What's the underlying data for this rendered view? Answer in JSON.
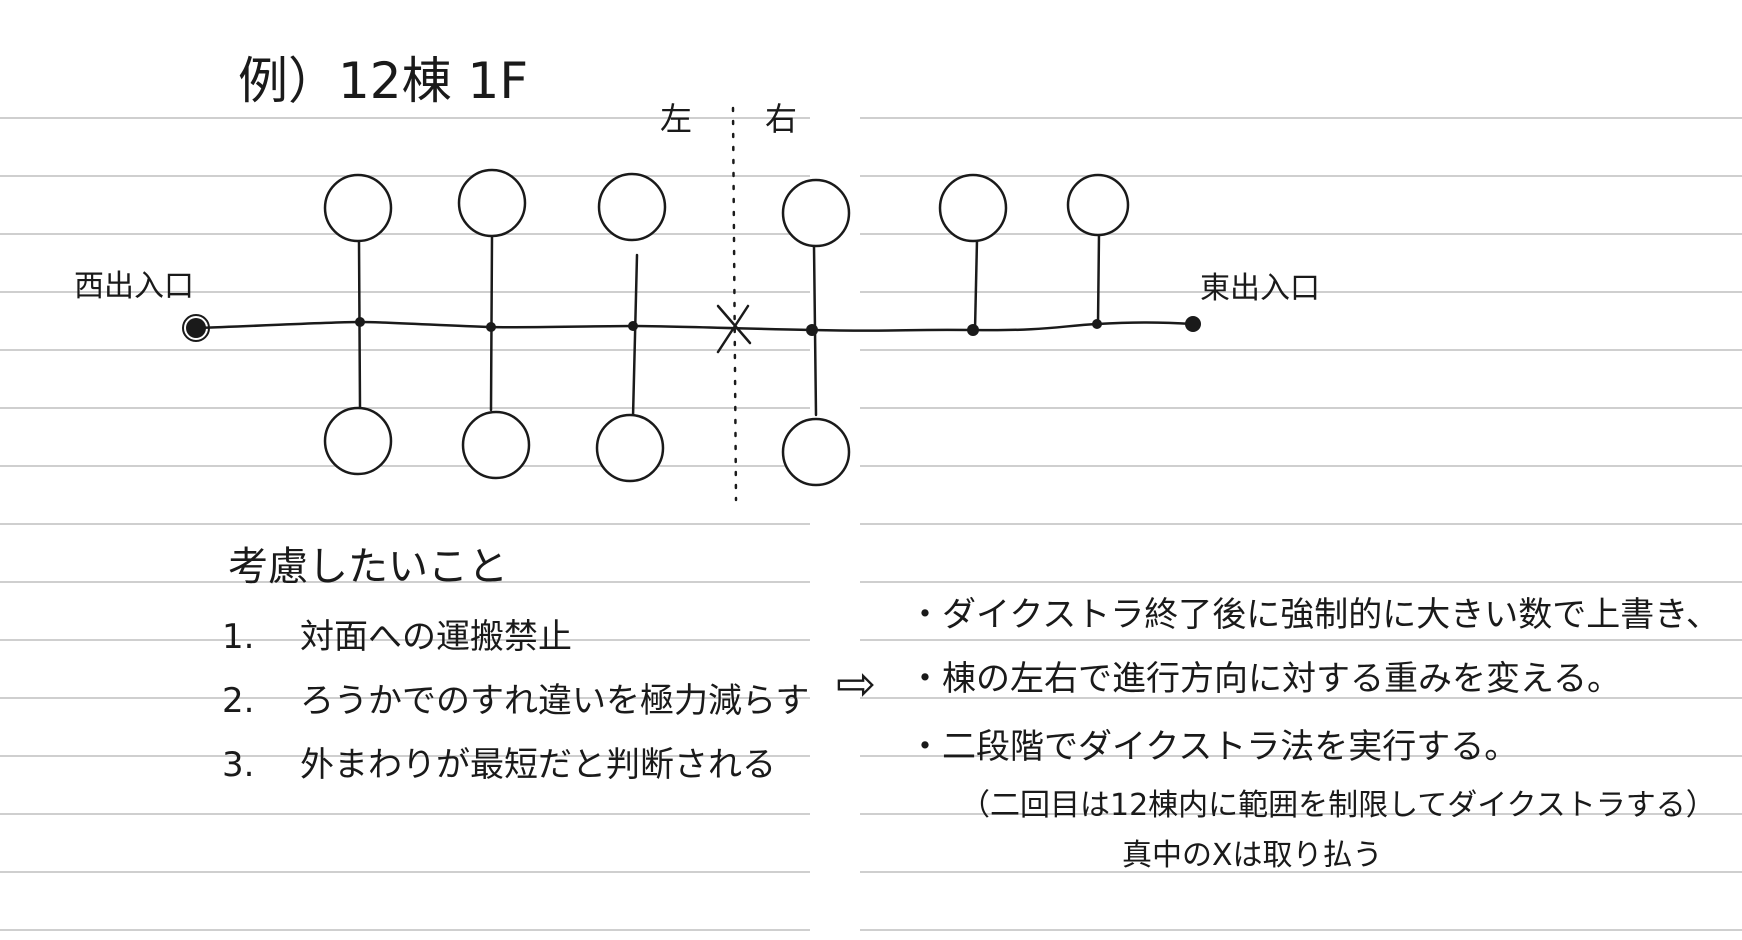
{
  "title": "例）12棟 1F",
  "divider": {
    "left_label": "左",
    "right_label": "右"
  },
  "entrances": {
    "west": "西出入口",
    "east": "東出入口"
  },
  "center_mark": "X",
  "considerations": {
    "heading": "考慮したいこと",
    "items": [
      {
        "num": "1.",
        "text": "対面への運搬禁止"
      },
      {
        "num": "2.",
        "text": "ろうかでのすれ違いを極力減らす"
      },
      {
        "num": "3.",
        "text": "外まわりが最短だと判断される"
      }
    ]
  },
  "arrow_symbol": "⇨",
  "solutions": [
    "・ダイクストラ終了後に強制的に大きい数で上書き、",
    "・棟の左右で進行方向に対する重みを変える。",
    "・二段階でダイクストラ法を実行する。",
    "（二回目は12棟内に範囲を制限してダイクストラする）",
    "真中のXは取り払う"
  ]
}
